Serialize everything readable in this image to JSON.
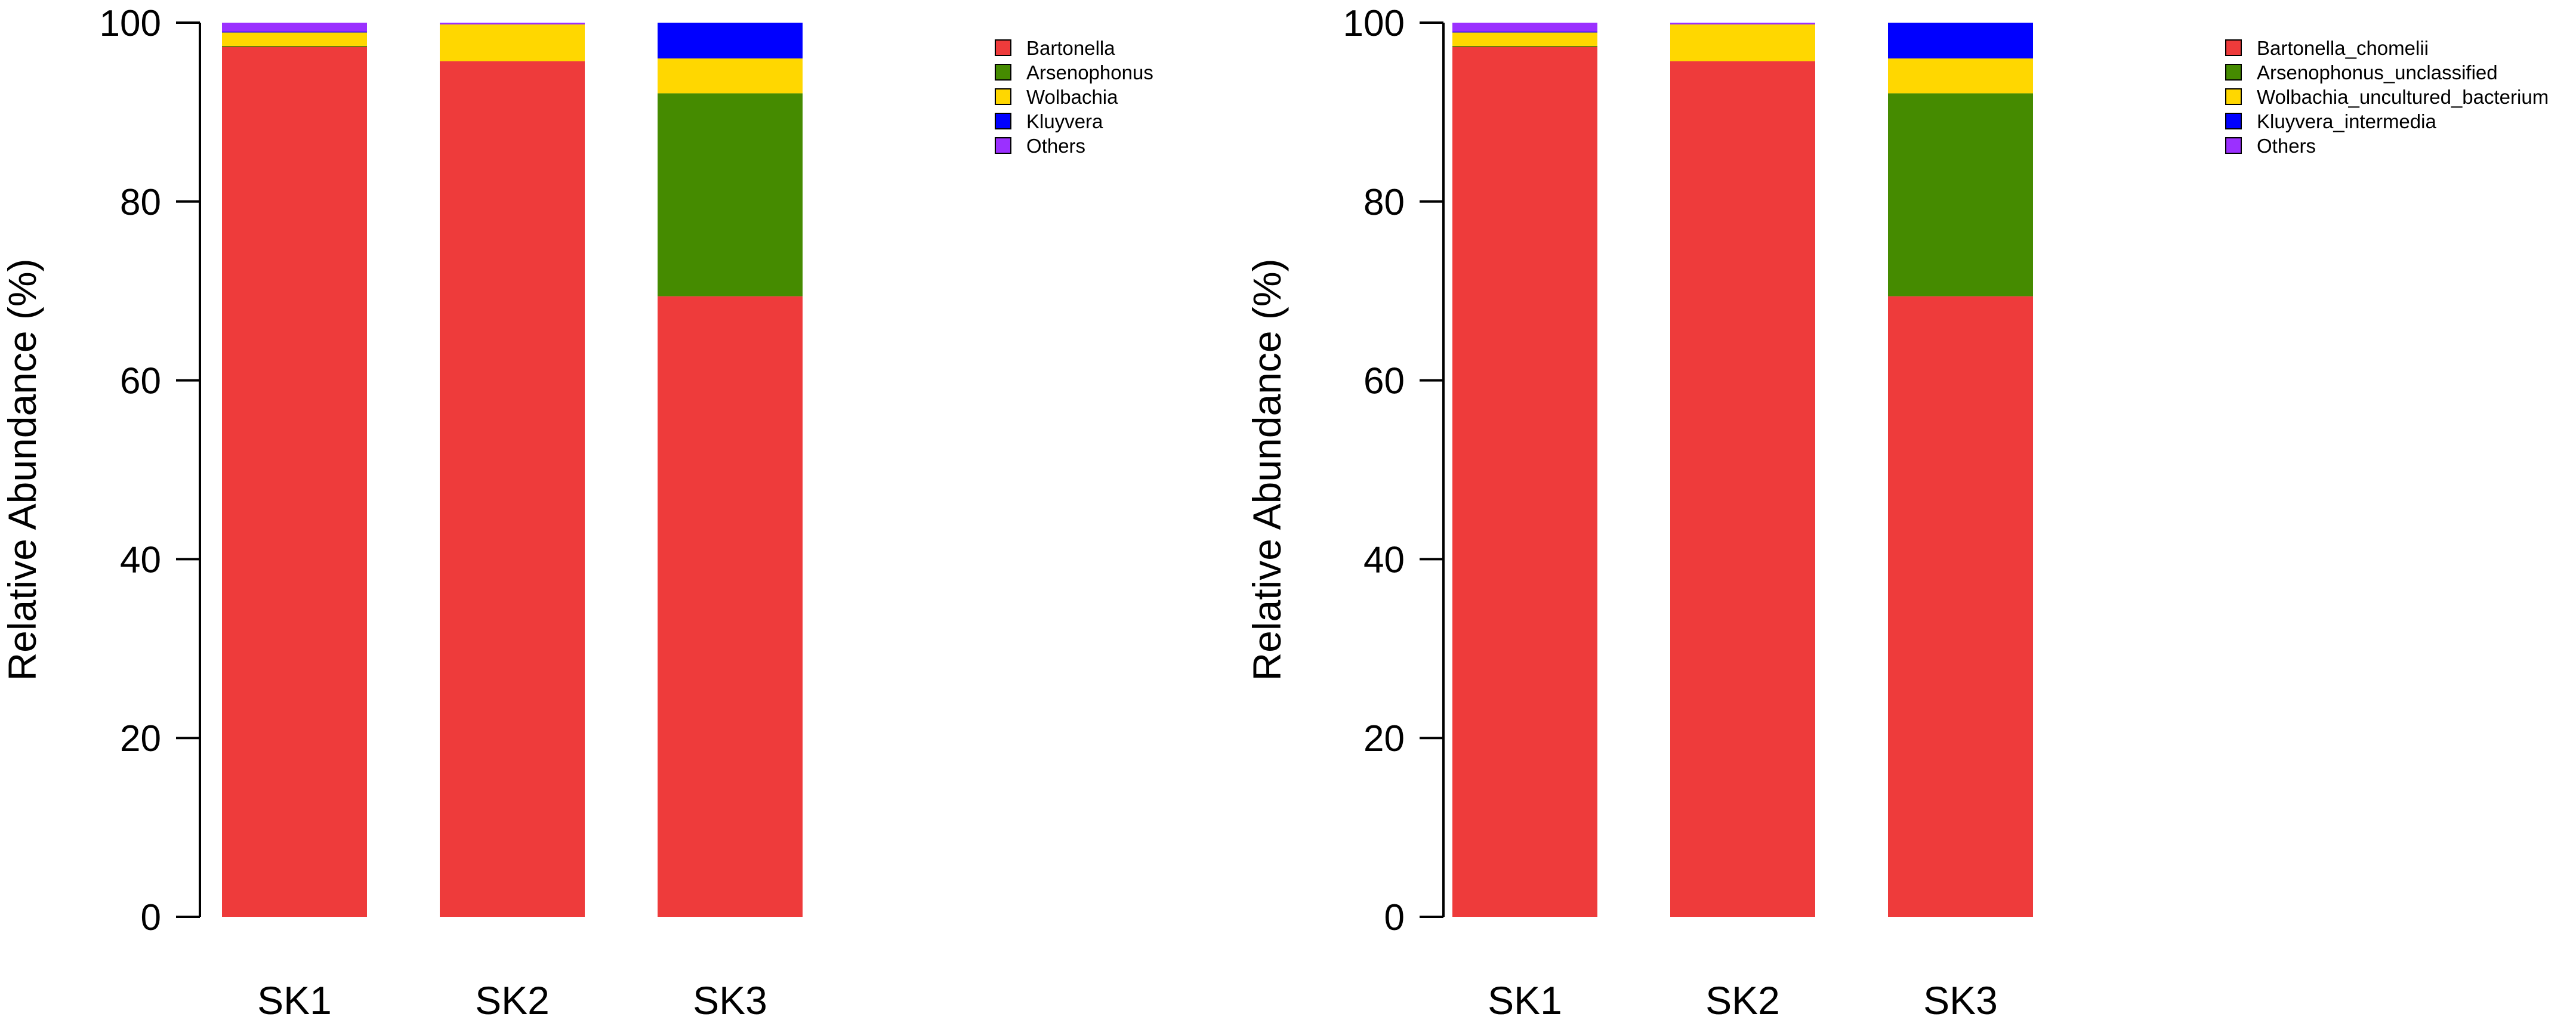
{
  "colors": {
    "red": "#ee3b3b",
    "green": "#458b00",
    "yellow": "#ffd700",
    "blue": "#0000ff",
    "purple": "#9b30ff"
  },
  "chart_data": [
    {
      "type": "bar",
      "stacked": true,
      "title": "",
      "xlabel": "",
      "ylabel": "Relative Abundance (%)",
      "ylim": [
        0,
        100
      ],
      "yticks": [
        0,
        20,
        40,
        60,
        80,
        100
      ],
      "categories": [
        "SK1",
        "SK2",
        "SK3"
      ],
      "legend_position": "top-right",
      "series": [
        {
          "name": "Bartonella",
          "color": "#ee3b3b",
          "values": [
            97.3,
            95.7,
            69.4
          ]
        },
        {
          "name": "Arsenophonus",
          "color": "#458b00",
          "values": [
            0.1,
            0.0,
            22.7
          ]
        },
        {
          "name": "Wolbachia",
          "color": "#ffd700",
          "values": [
            1.5,
            4.1,
            3.9
          ]
        },
        {
          "name": "Kluyvera",
          "color": "#0000ff",
          "values": [
            0.1,
            0.0,
            4.0
          ]
        },
        {
          "name": "Others",
          "color": "#9b30ff",
          "values": [
            1.0,
            0.2,
            0.0
          ]
        }
      ]
    },
    {
      "type": "bar",
      "stacked": true,
      "title": "",
      "xlabel": "",
      "ylabel": "Relative Abundance (%)",
      "ylim": [
        0,
        100
      ],
      "yticks": [
        0,
        20,
        40,
        60,
        80,
        100
      ],
      "categories": [
        "SK1",
        "SK2",
        "SK3"
      ],
      "legend_position": "top-right",
      "series": [
        {
          "name": "Bartonella_chomelii",
          "color": "#ee3b3b",
          "values": [
            97.3,
            95.7,
            69.4
          ]
        },
        {
          "name": "Arsenophonus_unclassified",
          "color": "#458b00",
          "values": [
            0.1,
            0.0,
            22.7
          ]
        },
        {
          "name": "Wolbachia_uncultured_bacterium",
          "color": "#ffd700",
          "values": [
            1.5,
            4.1,
            3.9
          ]
        },
        {
          "name": "Kluyvera_intermedia",
          "color": "#0000ff",
          "values": [
            0.1,
            0.0,
            4.0
          ]
        },
        {
          "name": "Others",
          "color": "#9b30ff",
          "values": [
            1.0,
            0.2,
            0.0
          ]
        }
      ]
    }
  ]
}
